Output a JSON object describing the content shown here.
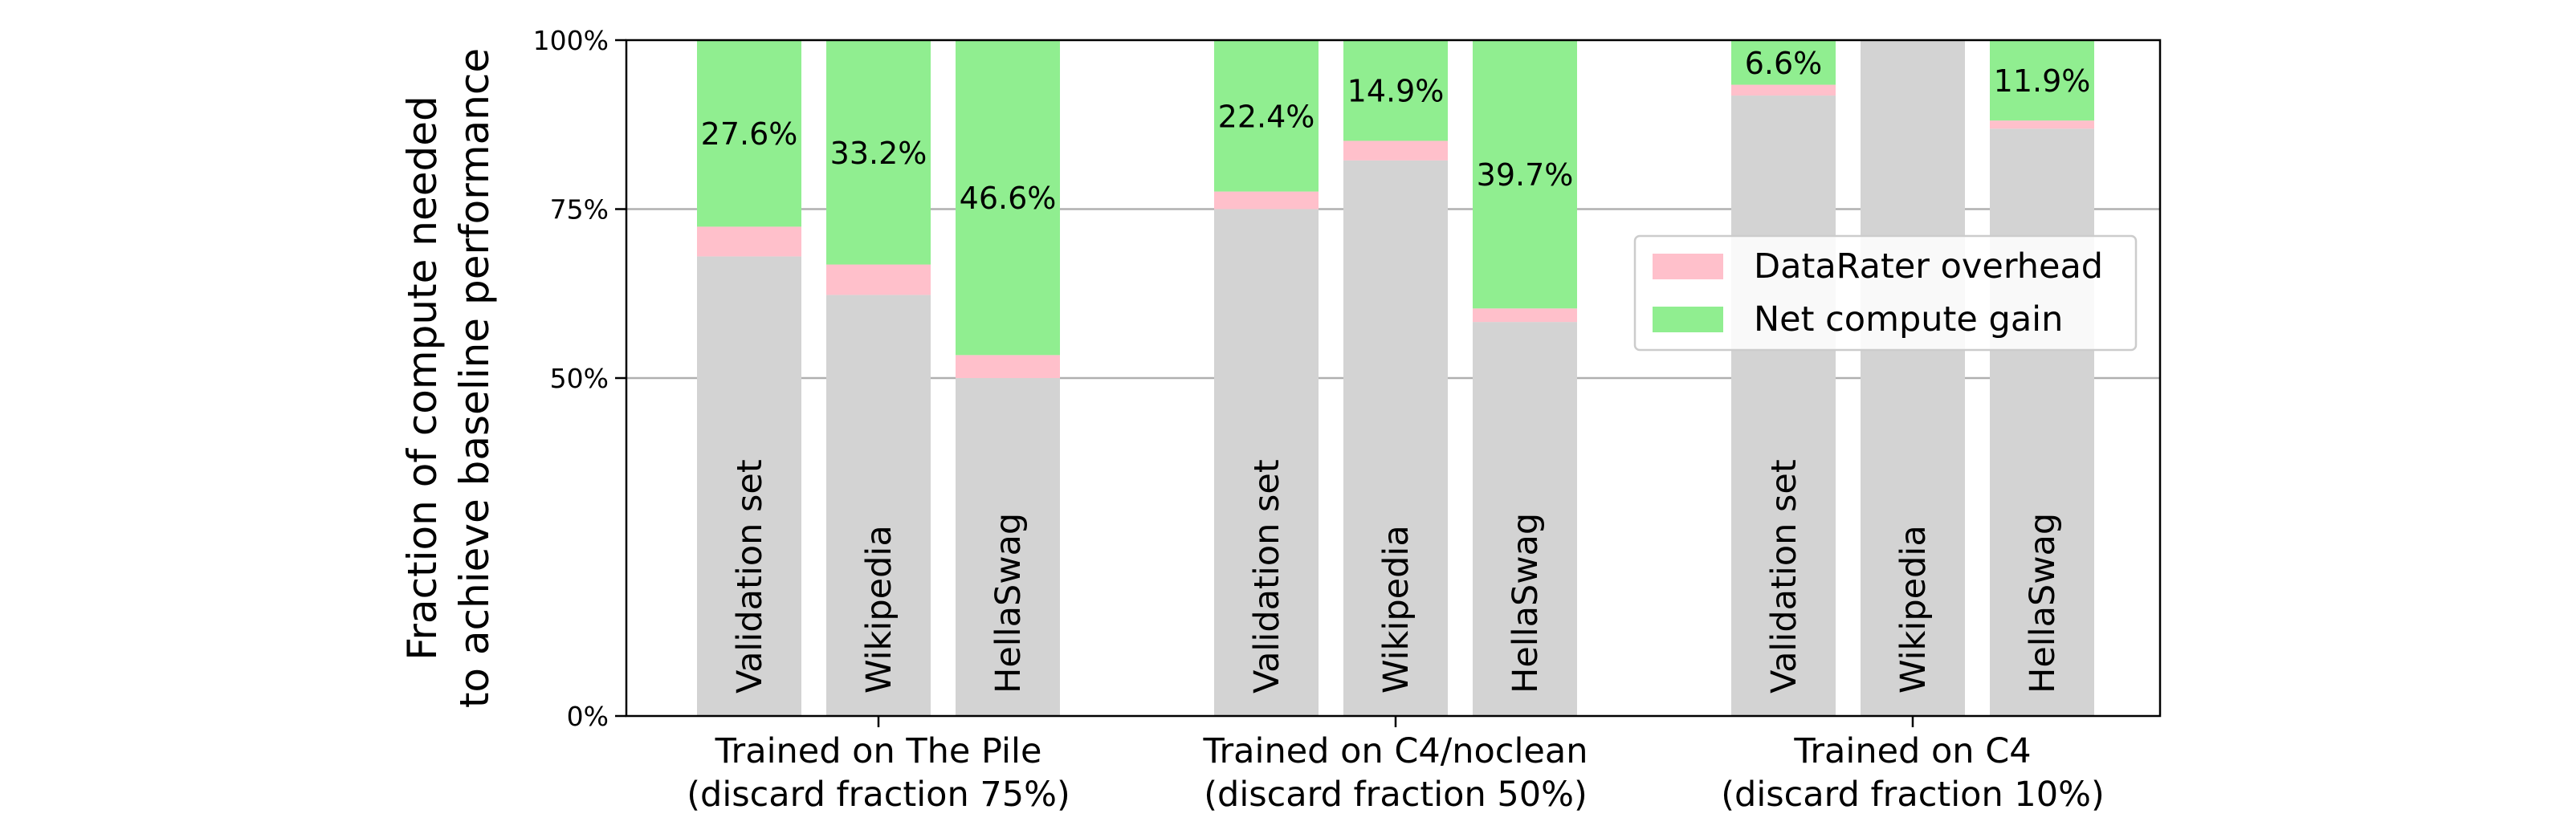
{
  "chart_data": {
    "type": "bar",
    "stacked": true,
    "ylabel_lines": [
      "Fraction of compute needed",
      "to achieve baseline performance"
    ],
    "ylim": [
      0,
      100
    ],
    "yticks": [
      0,
      50,
      75,
      100
    ],
    "ytick_labels": [
      "0%",
      "50%",
      "75%",
      "100%"
    ],
    "grid": {
      "y": true,
      "lines_at": [
        50,
        75
      ]
    },
    "legend": {
      "placement": "center-right",
      "entries": [
        {
          "key": "overhead",
          "label": "DataRater overhead",
          "color": "#ffc0cb"
        },
        {
          "key": "gain",
          "label": "Net compute gain",
          "color": "#90ee90"
        }
      ]
    },
    "base_color": "#d3d3d3",
    "groups": [
      {
        "label_lines": [
          "Trained on The Pile",
          "(discard fraction 75%)"
        ],
        "bars": [
          {
            "name": "Validation set",
            "base": 68,
            "overhead": 4.4,
            "gain": 27.6,
            "gain_label": "27.6%"
          },
          {
            "name": "Wikipedia",
            "base": 62.3,
            "overhead": 4.5,
            "gain": 33.2,
            "gain_label": "33.2%"
          },
          {
            "name": "HellaSwag",
            "base": 50,
            "overhead": 3.4,
            "gain": 46.6,
            "gain_label": "46.6%"
          }
        ]
      },
      {
        "label_lines": [
          "Trained on C4/noclean",
          "(discard fraction 50%)"
        ],
        "bars": [
          {
            "name": "Validation set",
            "base": 75,
            "overhead": 2.6,
            "gain": 22.4,
            "gain_label": "22.4%"
          },
          {
            "name": "Wikipedia",
            "base": 82.2,
            "overhead": 2.9,
            "gain": 14.9,
            "gain_label": "14.9%"
          },
          {
            "name": "HellaSwag",
            "base": 58.3,
            "overhead": 2.0,
            "gain": 39.7,
            "gain_label": "39.7%"
          }
        ]
      },
      {
        "label_lines": [
          "Trained on C4",
          "(discard fraction 10%)"
        ],
        "bars": [
          {
            "name": "Validation set",
            "base": 91.8,
            "overhead": 1.6,
            "gain": 6.6,
            "gain_label": "6.6%"
          },
          {
            "name": "Wikipedia",
            "base": 100,
            "overhead": 0,
            "gain": 0,
            "gain_label": ""
          },
          {
            "name": "HellaSwag",
            "base": 86.9,
            "overhead": 1.2,
            "gain": 11.9,
            "gain_label": "11.9%"
          }
        ]
      }
    ]
  }
}
